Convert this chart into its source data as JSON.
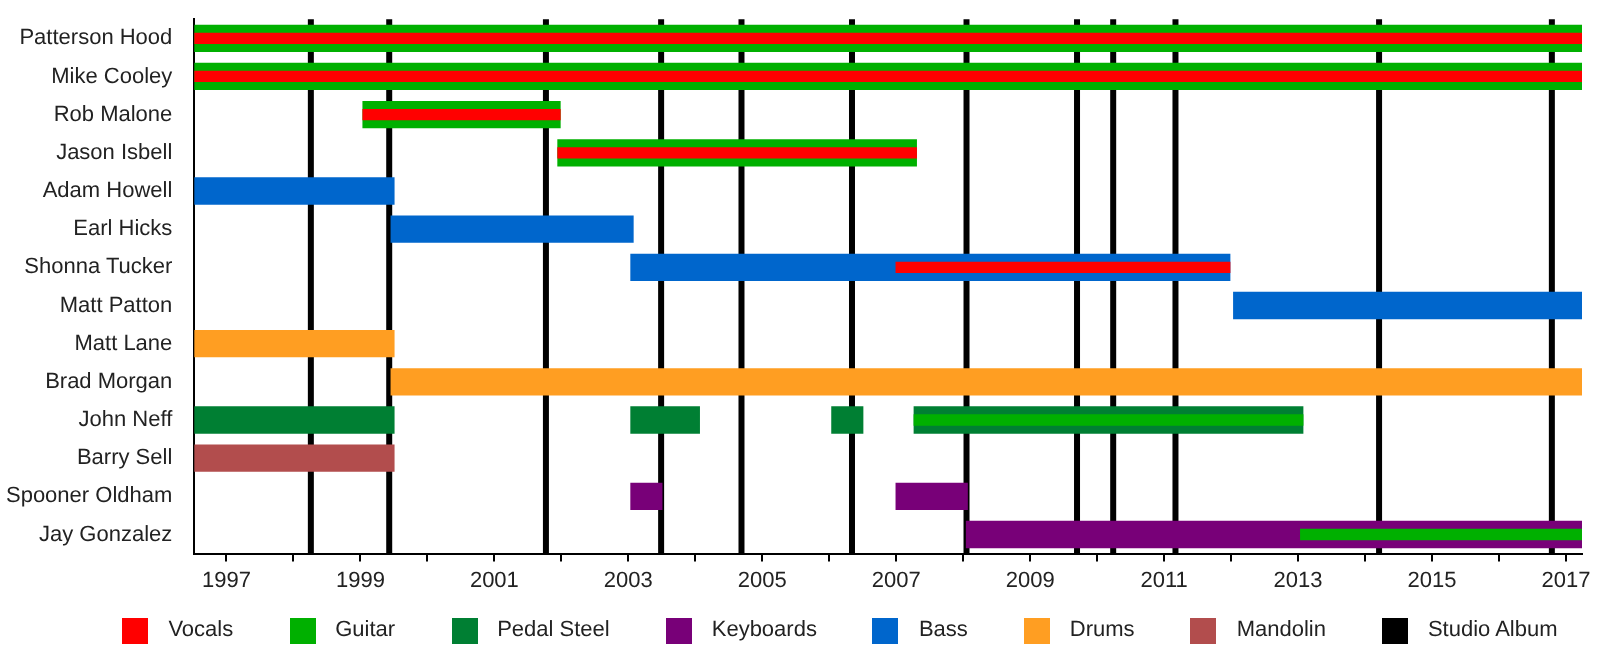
{
  "chart_data": {
    "type": "bar",
    "orientation": "horizontal",
    "legend": "bottom",
    "categories": [
      "Patterson Hood",
      "Mike Cooley",
      "Rob Malone",
      "Jason Isbell",
      "Adam Howell",
      "Earl Hicks",
      "Shonna Tucker",
      "Matt Patton",
      "Matt Lane",
      "Brad Morgan",
      "John Neff",
      "Barry Sell",
      "Spooner Oldham",
      "Jay Gonzalez"
    ],
    "xlim": [
      1996.52,
      2017.24
    ],
    "xticks": [
      1997,
      {
        "value": 1998,
        "label": null
      },
      1999,
      {
        "value": 2000,
        "label": null
      },
      2001,
      {
        "value": 2002,
        "label": null
      },
      2003,
      {
        "value": 2004,
        "label": null
      },
      2005,
      {
        "value": 2006,
        "label": null
      },
      2007,
      {
        "value": 2008,
        "label": null
      },
      2009,
      {
        "value": 2010,
        "label": null
      },
      2011,
      {
        "value": 2012,
        "label": null
      },
      2013,
      {
        "value": 2014,
        "label": null
      },
      2015,
      {
        "value": 2016,
        "label": null
      },
      2017
    ],
    "series": [
      {
        "name": "Vocals",
        "color": "#ff0000",
        "base": [
          1996.52,
          1996.52,
          1999.04,
          2001.95,
          null,
          null,
          2007.0,
          null,
          null,
          null,
          null,
          null,
          null,
          null
        ],
        "values": [
          20.72,
          20.72,
          2.94,
          5.35,
          null,
          null,
          4.98,
          null,
          null,
          null,
          null,
          null,
          null,
          null
        ]
      },
      {
        "name": "Guitar",
        "color": "#00b000",
        "base": [
          1996.52,
          1996.52,
          1999.04,
          2001.95,
          null,
          null,
          null,
          null,
          null,
          null,
          2007.27,
          null,
          null,
          2013.04
        ],
        "values": [
          20.72,
          20.72,
          2.94,
          5.35,
          null,
          null,
          null,
          null,
          null,
          null,
          5.8,
          null,
          null,
          4.2
        ]
      },
      {
        "name": "Pedal Steel",
        "color": "#007f33",
        "base": [
          null,
          null,
          null,
          null,
          null,
          null,
          null,
          null,
          null,
          null,
          1996.52,
          null,
          null,
          null
        ],
        "values": [
          null,
          null,
          null,
          null,
          null,
          null,
          null,
          null,
          null,
          null,
          2.98,
          null,
          null,
          null
        ]
      },
      {
        "color": "#007f33",
        "base": [
          null,
          null,
          null,
          null,
          null,
          null,
          null,
          null,
          null,
          null,
          2003.04,
          null,
          null,
          null
        ],
        "values": [
          null,
          null,
          null,
          null,
          null,
          null,
          null,
          null,
          null,
          null,
          1.02,
          null,
          null,
          null
        ]
      },
      {
        "color": "#007f33",
        "base": [
          null,
          null,
          null,
          null,
          null,
          null,
          null,
          null,
          null,
          null,
          2006.04,
          null,
          null,
          null
        ],
        "values": [
          null,
          null,
          null,
          null,
          null,
          null,
          null,
          null,
          null,
          null,
          0.46,
          null,
          null,
          null
        ]
      },
      {
        "color": "#007f33",
        "base": [
          null,
          null,
          null,
          null,
          null,
          null,
          null,
          null,
          null,
          null,
          2007.27,
          null,
          null,
          null
        ],
        "values": [
          null,
          null,
          null,
          null,
          null,
          null,
          null,
          null,
          null,
          null,
          5.8,
          null,
          null,
          null
        ]
      },
      {
        "name": "Keyboards",
        "color": "#780078",
        "base": [
          null,
          null,
          null,
          null,
          null,
          null,
          null,
          null,
          null,
          null,
          null,
          null,
          2003.04,
          2008.05
        ],
        "values": [
          null,
          null,
          null,
          null,
          null,
          null,
          null,
          null,
          null,
          null,
          null,
          null,
          0.46,
          9.19
        ]
      },
      {
        "color": "#780078",
        "base": [
          null,
          null,
          null,
          null,
          null,
          null,
          null,
          null,
          null,
          null,
          null,
          null,
          2007.0,
          null
        ],
        "values": [
          null,
          null,
          null,
          null,
          null,
          null,
          null,
          null,
          null,
          null,
          null,
          null,
          1.06,
          null
        ]
      },
      {
        "name": "Bass",
        "color": "#0066cc",
        "base": [
          null,
          null,
          null,
          null,
          1996.52,
          1999.46,
          2003.04,
          2012.04,
          null,
          null,
          null,
          null,
          null,
          null
        ],
        "values": [
          null,
          null,
          null,
          null,
          2.98,
          3.61,
          8.94,
          5.2,
          null,
          null,
          null,
          null,
          null,
          null
        ]
      },
      {
        "name": "Drums",
        "color": "#ff9e22",
        "base": [
          null,
          null,
          null,
          null,
          null,
          null,
          null,
          null,
          1996.52,
          1999.46,
          null,
          null,
          null,
          null
        ],
        "values": [
          null,
          null,
          null,
          null,
          null,
          null,
          null,
          null,
          2.98,
          17.78,
          null,
          null,
          null,
          null
        ]
      },
      {
        "name": "Mandolin",
        "color": "#b24d4d",
        "base": [
          null,
          null,
          null,
          null,
          null,
          null,
          null,
          null,
          null,
          null,
          null,
          1996.52,
          null,
          null
        ],
        "values": [
          null,
          null,
          null,
          null,
          null,
          null,
          null,
          null,
          null,
          null,
          null,
          2.98,
          null,
          null
        ]
      }
    ],
    "ref_lines": [
      {
        "axis": "x",
        "value": 1998.26,
        "label": "Studio Album",
        "color": "#000000"
      },
      {
        "axis": "x",
        "value": 1999.43,
        "color": "#000000"
      },
      {
        "axis": "x",
        "value": 2001.77,
        "color": "#000000"
      },
      {
        "axis": "x",
        "value": 2003.49,
        "color": "#000000"
      },
      {
        "axis": "x",
        "value": 2004.69,
        "color": "#000000"
      },
      {
        "axis": "x",
        "value": 2006.34,
        "color": "#000000"
      },
      {
        "axis": "x",
        "value": 2008.05,
        "color": "#000000"
      },
      {
        "axis": "x",
        "value": 2009.7,
        "color": "#000000"
      },
      {
        "axis": "x",
        "value": 2010.24,
        "color": "#000000"
      },
      {
        "axis": "x",
        "value": 2011.17,
        "color": "#000000"
      },
      {
        "axis": "x",
        "value": 2014.21,
        "color": "#000000"
      },
      {
        "axis": "x",
        "value": 2016.79,
        "color": "#000000"
      }
    ]
  }
}
